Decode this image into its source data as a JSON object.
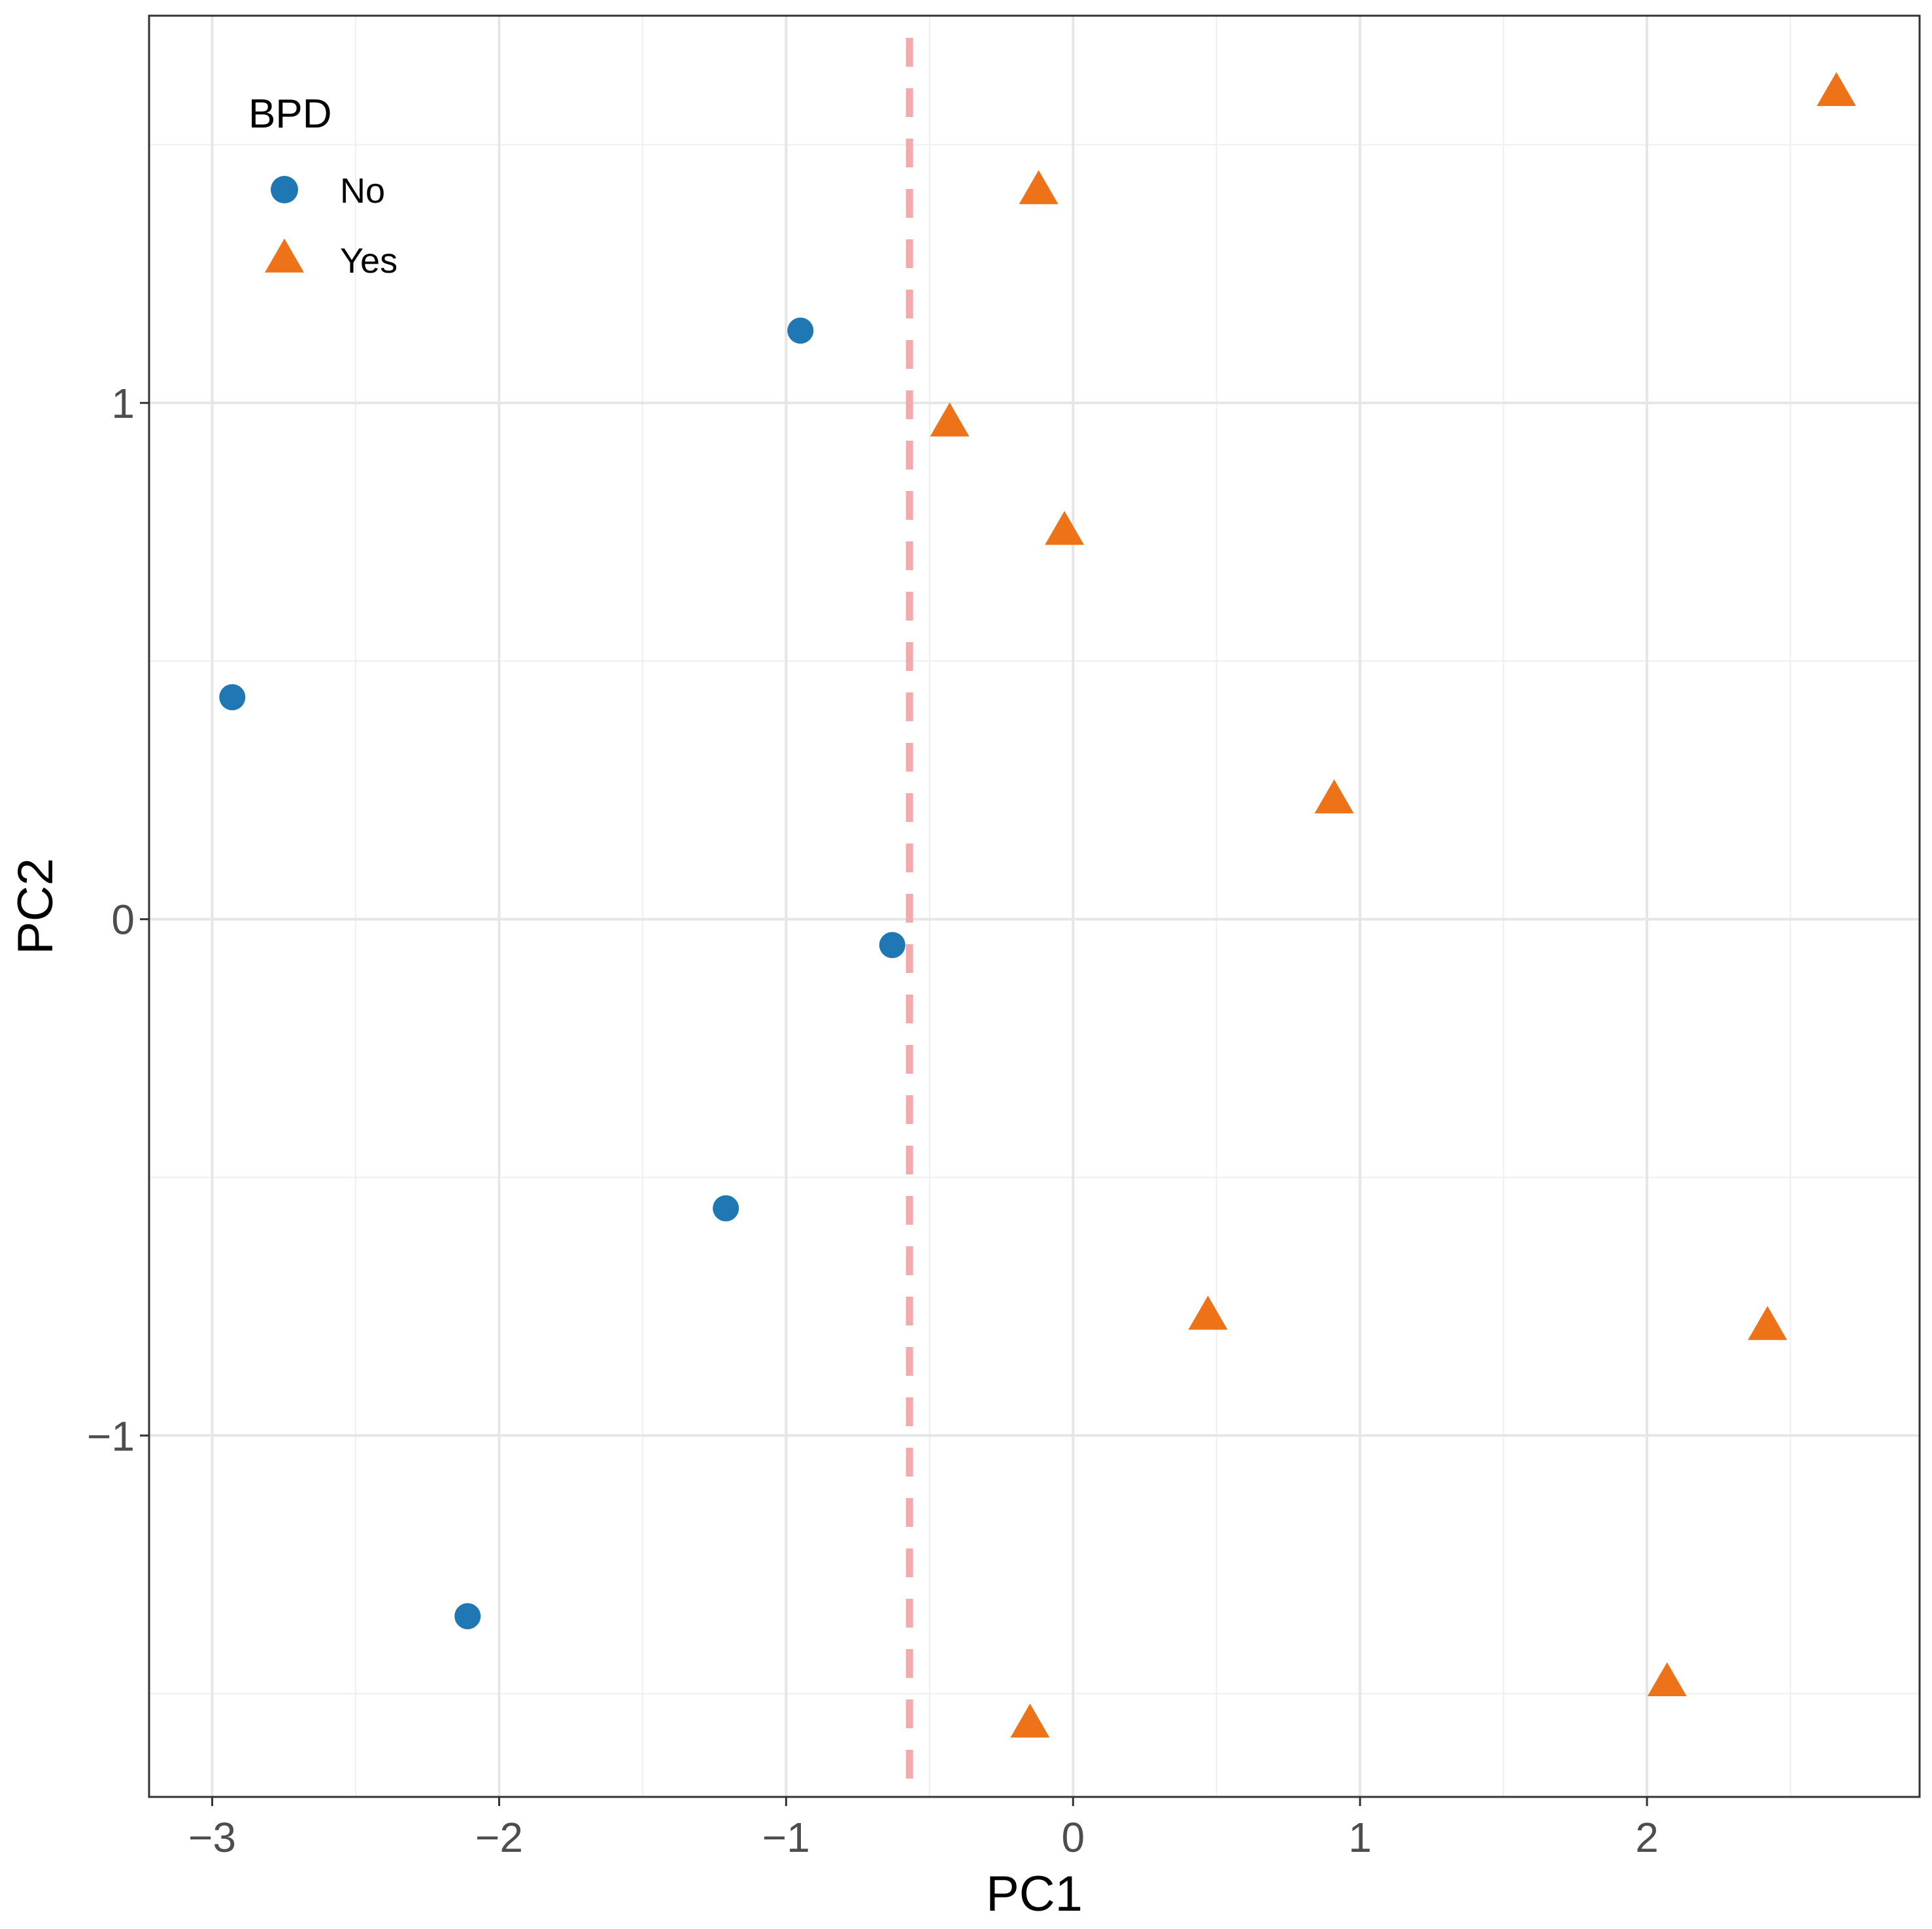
{
  "chart_data": {
    "type": "scatter",
    "title": "",
    "xlabel": "PC1",
    "ylabel": "PC2",
    "xlim": [
      -3.22,
      2.95
    ],
    "ylim": [
      -1.7,
      1.75
    ],
    "x_ticks": [
      -3,
      -2,
      -1,
      0,
      1,
      2
    ],
    "x_tick_labels": [
      "−3",
      "−2",
      "−1",
      "0",
      "1",
      "2"
    ],
    "x_minor_ticks": [
      -2.5,
      -1.5,
      -0.5,
      0.5,
      1.5,
      2.5
    ],
    "y_ticks": [
      -1,
      0,
      1
    ],
    "y_tick_labels": [
      "−1",
      "0",
      "1"
    ],
    "y_minor_ticks": [
      -1.5,
      -0.5,
      0.5,
      1.5
    ],
    "grid": true,
    "reference_line": {
      "orientation": "vertical",
      "x": -0.57,
      "style": "dashed",
      "color": "#f4aaaa"
    },
    "legend": {
      "title": "BPD",
      "position": "top-left",
      "entries": [
        {
          "label": "No",
          "shape": "circle",
          "color": "#1f77b4"
        },
        {
          "label": "Yes",
          "shape": "triangle",
          "color": "#ee7217"
        }
      ]
    },
    "series": [
      {
        "name": "No",
        "shape": "circle",
        "color": "#1f77b4",
        "points": [
          {
            "x": -0.95,
            "y": 1.14
          },
          {
            "x": -2.93,
            "y": 0.43
          },
          {
            "x": -0.63,
            "y": -0.05
          },
          {
            "x": -1.21,
            "y": -0.56
          },
          {
            "x": -2.11,
            "y": -1.35
          }
        ]
      },
      {
        "name": "Yes",
        "shape": "triangle",
        "color": "#ee7217",
        "points": [
          {
            "x": 2.66,
            "y": 1.6
          },
          {
            "x": -0.12,
            "y": 1.41
          },
          {
            "x": -0.43,
            "y": 0.96
          },
          {
            "x": -0.03,
            "y": 0.75
          },
          {
            "x": 0.91,
            "y": 0.23
          },
          {
            "x": 0.47,
            "y": -0.77
          },
          {
            "x": 2.42,
            "y": -0.79
          },
          {
            "x": 2.07,
            "y": -1.48
          },
          {
            "x": -0.15,
            "y": -1.56
          }
        ]
      }
    ]
  }
}
